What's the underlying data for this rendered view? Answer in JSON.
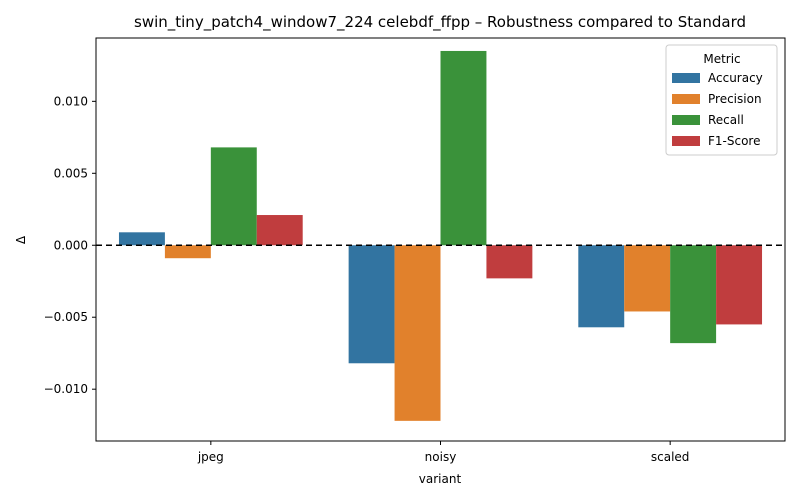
{
  "chart_data": {
    "type": "bar",
    "title": "swin_tiny_patch4_window7_224 celebdf_ffpp – Robustness compared to Standard",
    "xlabel": "variant",
    "ylabel": "Δ",
    "categories": [
      "jpeg",
      "noisy",
      "scaled"
    ],
    "ylim": [
      -0.0136,
      0.0144
    ],
    "yticks": [
      -0.01,
      -0.005,
      0.0,
      0.005,
      0.01
    ],
    "ytick_labels": [
      "−0.010",
      "−0.005",
      "0.000",
      "0.005",
      "0.010"
    ],
    "reference_line": 0,
    "grid": false,
    "legend": {
      "title": "Metric",
      "position": "top-right"
    },
    "series": [
      {
        "name": "Accuracy",
        "color": "#3274a1",
        "values": [
          0.0009,
          -0.0082,
          -0.0057
        ]
      },
      {
        "name": "Precision",
        "color": "#e1812c",
        "values": [
          -0.0009,
          -0.0122,
          -0.0046
        ]
      },
      {
        "name": "Recall",
        "color": "#3a923a",
        "values": [
          0.0068,
          0.0135,
          -0.0068
        ]
      },
      {
        "name": "F1-Score",
        "color": "#c03d3e",
        "values": [
          0.0021,
          -0.0023,
          -0.0055
        ]
      }
    ]
  }
}
